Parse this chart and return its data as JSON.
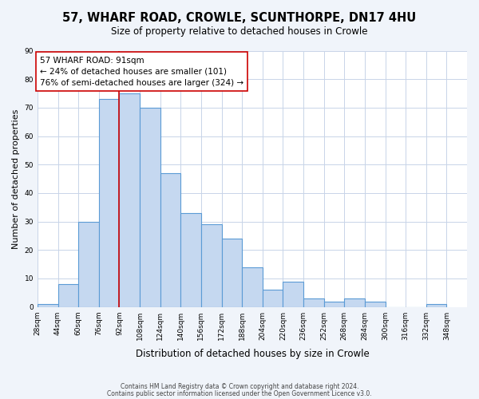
{
  "title": "57, WHARF ROAD, CROWLE, SCUNTHORPE, DN17 4HU",
  "subtitle": "Size of property relative to detached houses in Crowle",
  "xlabel": "Distribution of detached houses by size in Crowle",
  "ylabel": "Number of detached properties",
  "bin_labels": [
    "28sqm",
    "44sqm",
    "60sqm",
    "76sqm",
    "92sqm",
    "108sqm",
    "124sqm",
    "140sqm",
    "156sqm",
    "172sqm",
    "188sqm",
    "204sqm",
    "220sqm",
    "236sqm",
    "252sqm",
    "268sqm",
    "284sqm",
    "300sqm",
    "316sqm",
    "332sqm",
    "348sqm"
  ],
  "bin_left_edges": [
    28,
    44,
    60,
    76,
    92,
    108,
    124,
    140,
    156,
    172,
    188,
    204,
    220,
    236,
    252,
    268,
    284,
    300,
    316,
    332,
    348
  ],
  "bar_heights": [
    1,
    8,
    30,
    73,
    75,
    70,
    47,
    33,
    29,
    24,
    14,
    6,
    9,
    3,
    2,
    3,
    2,
    0,
    0,
    1
  ],
  "bar_color": "#c5d8f0",
  "bar_edge_color": "#5b9bd5",
  "vline_x": 92,
  "vline_color": "#cc0000",
  "annotation_text": "57 WHARF ROAD: 91sqm\n← 24% of detached houses are smaller (101)\n76% of semi-detached houses are larger (324) →",
  "annotation_box_color": "#ffffff",
  "annotation_box_edge_color": "#cc0000",
  "ylim": [
    0,
    90
  ],
  "yticks": [
    0,
    10,
    20,
    30,
    40,
    50,
    60,
    70,
    80,
    90
  ],
  "footer1": "Contains HM Land Registry data © Crown copyright and database right 2024.",
  "footer2": "Contains public sector information licensed under the Open Government Licence v3.0.",
  "bg_color": "#f0f4fa",
  "plot_bg_color": "#ffffff",
  "grid_color": "#c8d4e8"
}
